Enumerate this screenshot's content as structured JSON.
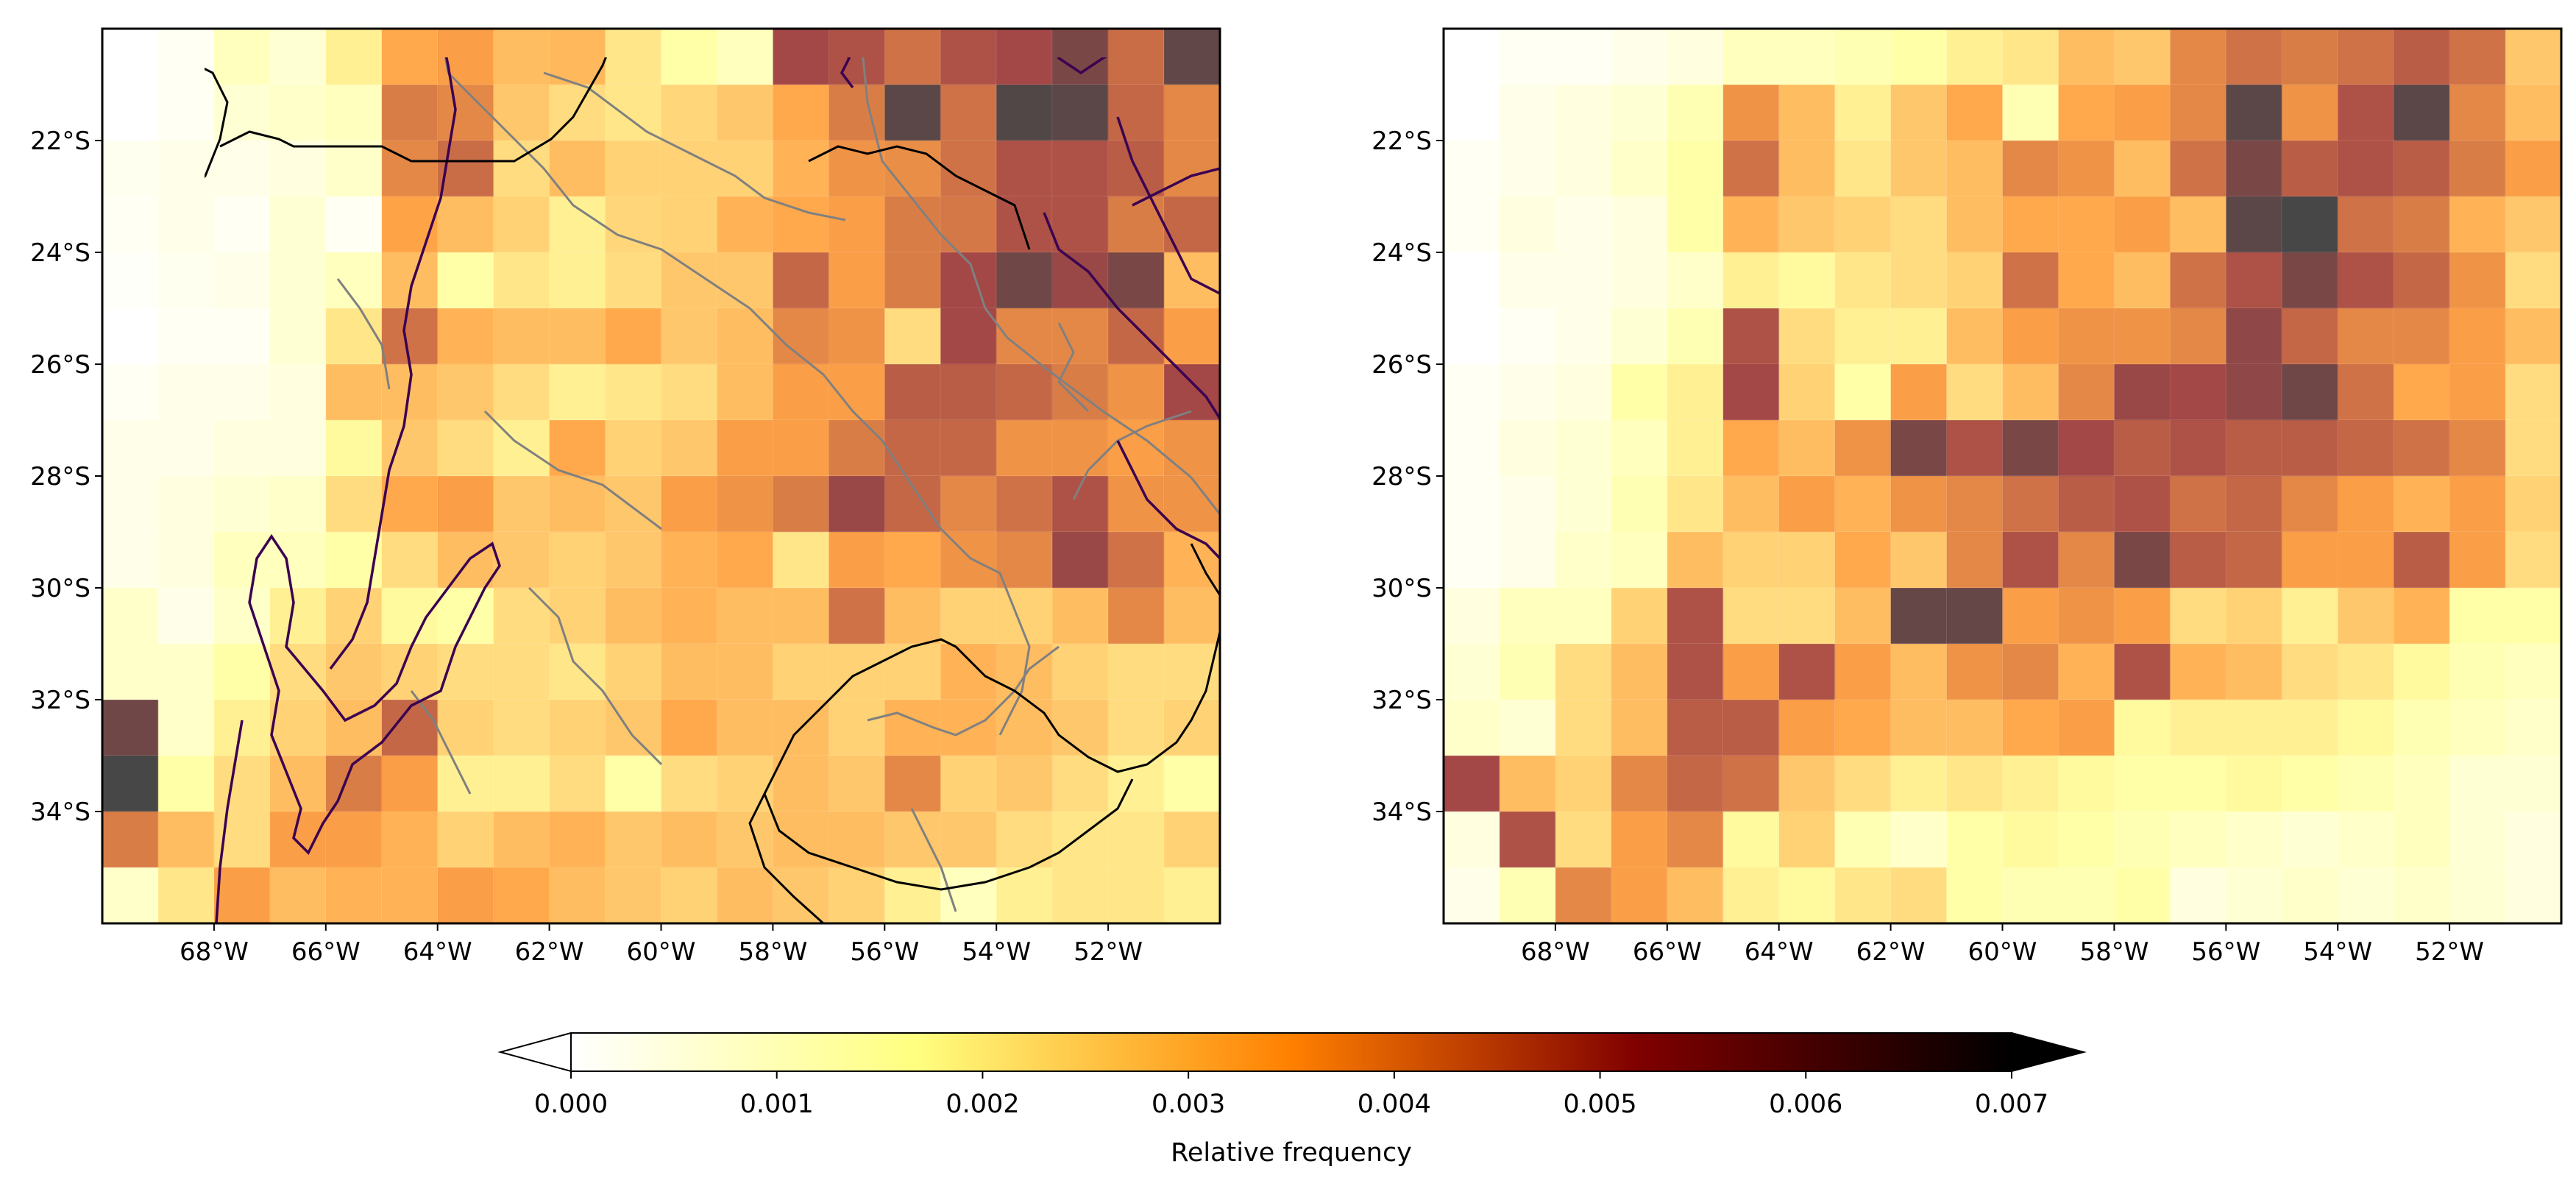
{
  "chart_data": {
    "type": "heatmap",
    "description_units": "degrees",
    "lon_range": [
      -70,
      -50
    ],
    "lat_range": [
      -36,
      -20
    ],
    "grid_resolution_deg": 1,
    "x_ticks": [
      -68,
      -66,
      -64,
      -62,
      -60,
      -58,
      -56,
      -54,
      -52
    ],
    "x_tick_labels": [
      "68°W",
      "66°W",
      "64°W",
      "62°W",
      "60°W",
      "58°W",
      "56°W",
      "54°W",
      "52°W"
    ],
    "y_ticks": [
      -22,
      -24,
      -26,
      -28,
      -30,
      -32,
      -34
    ],
    "y_tick_labels": [
      "22°S",
      "24°S",
      "26°S",
      "28°S",
      "30°S",
      "32°S",
      "34°S"
    ],
    "colorbar": {
      "label": "Relative frequency",
      "min": 0.0,
      "max": 0.007,
      "extend": "both",
      "colormap": "afmhot_r-like (white-yellow-orange-dark red-black)",
      "ticks": [
        0.0,
        0.001,
        0.002,
        0.003,
        0.004,
        0.005,
        0.006,
        0.007
      ],
      "tick_labels": [
        "0.000",
        "0.001",
        "0.002",
        "0.003",
        "0.004",
        "0.005",
        "0.006",
        "0.007"
      ],
      "stops": [
        {
          "v": 0.0,
          "color": "#ffffff"
        },
        {
          "v": 0.0017,
          "color": "#ffff80"
        },
        {
          "v": 0.0035,
          "color": "#ff8000"
        },
        {
          "v": 0.0052,
          "color": "#800000"
        },
        {
          "v": 0.007,
          "color": "#000000"
        }
      ]
    },
    "panels": [
      {
        "name": "left",
        "grid_rows_north_to_south": [
          [
            0.0,
            0.0002,
            0.0012,
            0.0008,
            0.002,
            0.0034,
            0.0036,
            0.003,
            0.0031,
            0.0022,
            0.0016,
            0.0012,
            0.0052,
            0.005,
            0.0044,
            0.005,
            0.0052,
            0.006,
            0.0045,
            0.0065
          ],
          [
            0.0,
            0.0002,
            0.0008,
            0.001,
            0.0012,
            0.0042,
            0.004,
            0.0028,
            0.0024,
            0.0022,
            0.0025,
            0.0028,
            0.0034,
            0.0042,
            0.0066,
            0.0044,
            0.0068,
            0.0066,
            0.0046,
            0.004
          ],
          [
            0.0003,
            0.0004,
            0.0004,
            0.0006,
            0.001,
            0.004,
            0.0045,
            0.0024,
            0.003,
            0.0026,
            0.0026,
            0.0026,
            0.0032,
            0.0038,
            0.0039,
            0.0044,
            0.005,
            0.005,
            0.0048,
            0.004
          ],
          [
            0.0002,
            0.0004,
            0.0002,
            0.0008,
            0.0002,
            0.0035,
            0.003,
            0.0026,
            0.002,
            0.0025,
            0.0026,
            0.0032,
            0.0034,
            0.0036,
            0.0042,
            0.0043,
            0.005,
            0.005,
            0.0042,
            0.0046
          ],
          [
            0.0001,
            0.0003,
            0.0004,
            0.0008,
            0.0012,
            0.003,
            0.0016,
            0.0022,
            0.002,
            0.0024,
            0.0028,
            0.0028,
            0.0046,
            0.0036,
            0.0042,
            0.0052,
            0.0062,
            0.0054,
            0.006,
            0.003
          ],
          [
            0.0,
            0.0002,
            0.0002,
            0.0008,
            0.0022,
            0.0044,
            0.0032,
            0.003,
            0.003,
            0.0034,
            0.0028,
            0.003,
            0.004,
            0.0038,
            0.0024,
            0.0052,
            0.004,
            0.004,
            0.0046,
            0.0036
          ],
          [
            0.0002,
            0.0004,
            0.0004,
            0.0006,
            0.003,
            0.003,
            0.0028,
            0.0024,
            0.002,
            0.0022,
            0.0024,
            0.003,
            0.0036,
            0.0036,
            0.0048,
            0.0048,
            0.0046,
            0.0042,
            0.0038,
            0.0052
          ],
          [
            0.0004,
            0.0004,
            0.0006,
            0.0006,
            0.0018,
            0.0028,
            0.0024,
            0.002,
            0.0034,
            0.0026,
            0.0028,
            0.0036,
            0.0036,
            0.0042,
            0.0046,
            0.0046,
            0.0038,
            0.0038,
            0.0036,
            0.0038
          ],
          [
            0.0004,
            0.0006,
            0.0008,
            0.001,
            0.0024,
            0.0034,
            0.0036,
            0.0028,
            0.003,
            0.0028,
            0.0036,
            0.0038,
            0.0042,
            0.0054,
            0.0046,
            0.004,
            0.0044,
            0.005,
            0.0038,
            0.0038
          ],
          [
            0.0004,
            0.0006,
            0.0012,
            0.0012,
            0.0016,
            0.0024,
            0.003,
            0.0028,
            0.0026,
            0.0028,
            0.0032,
            0.0034,
            0.0022,
            0.0036,
            0.0034,
            0.0038,
            0.004,
            0.0054,
            0.0044,
            0.0032
          ],
          [
            0.001,
            0.0004,
            0.001,
            0.002,
            0.0026,
            0.0018,
            0.0016,
            0.0024,
            0.0026,
            0.003,
            0.0032,
            0.003,
            0.003,
            0.0044,
            0.003,
            0.0026,
            0.0026,
            0.003,
            0.004,
            0.003
          ],
          [
            0.001,
            0.001,
            0.0016,
            0.0024,
            0.0028,
            0.0026,
            0.0024,
            0.0024,
            0.0022,
            0.0026,
            0.003,
            0.003,
            0.0026,
            0.0026,
            0.0026,
            0.0032,
            0.003,
            0.0026,
            0.0024,
            0.0024
          ],
          [
            0.0062,
            0.001,
            0.002,
            0.0026,
            0.003,
            0.0046,
            0.0026,
            0.0024,
            0.0026,
            0.0028,
            0.0034,
            0.003,
            0.003,
            0.0026,
            0.0032,
            0.0032,
            0.003,
            0.0028,
            0.0024,
            0.0026
          ],
          [
            0.0072,
            0.0016,
            0.0024,
            0.003,
            0.0042,
            0.0036,
            0.002,
            0.002,
            0.0024,
            0.0016,
            0.0024,
            0.0026,
            0.003,
            0.0028,
            0.004,
            0.0026,
            0.0028,
            0.0024,
            0.002,
            0.0016
          ],
          [
            0.0042,
            0.003,
            0.0024,
            0.0036,
            0.0036,
            0.0032,
            0.0026,
            0.003,
            0.0032,
            0.0028,
            0.003,
            0.0028,
            0.003,
            0.003,
            0.0028,
            0.0028,
            0.0024,
            0.0022,
            0.0022,
            0.0026
          ],
          [
            0.001,
            0.0022,
            0.0036,
            0.003,
            0.0032,
            0.0032,
            0.0036,
            0.0034,
            0.003,
            0.0028,
            0.0026,
            0.003,
            0.0028,
            0.0026,
            0.002,
            0.0012,
            0.002,
            0.0022,
            0.0022,
            0.002
          ]
        ]
      },
      {
        "name": "right",
        "grid_rows_north_to_south": [
          [
            0.0,
            0.0002,
            0.0002,
            0.0004,
            0.0006,
            0.0012,
            0.0012,
            0.0014,
            0.0016,
            0.002,
            0.0022,
            0.003,
            0.0028,
            0.004,
            0.0044,
            0.0042,
            0.0044,
            0.0048,
            0.0044,
            0.0028
          ],
          [
            0.0,
            0.0004,
            0.0006,
            0.0008,
            0.0014,
            0.0038,
            0.003,
            0.002,
            0.0028,
            0.0034,
            0.0014,
            0.0034,
            0.0036,
            0.004,
            0.0066,
            0.0038,
            0.005,
            0.0066,
            0.004,
            0.003
          ],
          [
            0.0002,
            0.0004,
            0.0006,
            0.001,
            0.0016,
            0.0044,
            0.003,
            0.0022,
            0.0028,
            0.003,
            0.004,
            0.0038,
            0.003,
            0.0044,
            0.006,
            0.0048,
            0.005,
            0.0048,
            0.0042,
            0.0036
          ],
          [
            0.0002,
            0.0006,
            0.0004,
            0.0006,
            0.0016,
            0.0032,
            0.0028,
            0.0026,
            0.0024,
            0.003,
            0.0034,
            0.0034,
            0.0036,
            0.003,
            0.0066,
            0.007,
            0.0044,
            0.0042,
            0.0032,
            0.0028
          ],
          [
            0.0,
            0.0004,
            0.0004,
            0.0006,
            0.001,
            0.002,
            0.0018,
            0.0022,
            0.0024,
            0.0026,
            0.0044,
            0.0034,
            0.003,
            0.0044,
            0.005,
            0.006,
            0.005,
            0.0046,
            0.0038,
            0.0024
          ],
          [
            0.0,
            0.0002,
            0.0004,
            0.0008,
            0.0014,
            0.005,
            0.0024,
            0.002,
            0.002,
            0.003,
            0.0036,
            0.0038,
            0.0038,
            0.004,
            0.0056,
            0.0046,
            0.004,
            0.004,
            0.0036,
            0.003
          ],
          [
            0.0002,
            0.0004,
            0.0006,
            0.0016,
            0.002,
            0.0052,
            0.0026,
            0.0016,
            0.0036,
            0.0024,
            0.003,
            0.004,
            0.0054,
            0.0052,
            0.0056,
            0.0062,
            0.0044,
            0.0034,
            0.0036,
            0.0024
          ],
          [
            0.0002,
            0.0006,
            0.0008,
            0.0012,
            0.002,
            0.0034,
            0.003,
            0.0038,
            0.006,
            0.005,
            0.006,
            0.0052,
            0.0048,
            0.005,
            0.0048,
            0.0048,
            0.0046,
            0.0044,
            0.004,
            0.0024
          ],
          [
            0.0002,
            0.0004,
            0.0008,
            0.0014,
            0.0022,
            0.003,
            0.0036,
            0.0032,
            0.0038,
            0.004,
            0.0044,
            0.0048,
            0.005,
            0.0044,
            0.0046,
            0.004,
            0.0036,
            0.0032,
            0.0036,
            0.0026
          ],
          [
            0.0002,
            0.0004,
            0.001,
            0.0012,
            0.003,
            0.0026,
            0.0026,
            0.0034,
            0.0028,
            0.004,
            0.005,
            0.004,
            0.006,
            0.0048,
            0.0046,
            0.0036,
            0.0036,
            0.0048,
            0.0036,
            0.0024
          ],
          [
            0.0006,
            0.0012,
            0.0012,
            0.0026,
            0.005,
            0.0024,
            0.0024,
            0.003,
            0.0064,
            0.0064,
            0.0036,
            0.0038,
            0.0036,
            0.0024,
            0.0026,
            0.002,
            0.0028,
            0.0032,
            0.0016,
            0.0016
          ],
          [
            0.0008,
            0.0014,
            0.0024,
            0.003,
            0.005,
            0.0036,
            0.005,
            0.0036,
            0.003,
            0.0038,
            0.004,
            0.0032,
            0.005,
            0.0032,
            0.003,
            0.0024,
            0.0022,
            0.0018,
            0.0014,
            0.0012
          ],
          [
            0.001,
            0.0008,
            0.0024,
            0.003,
            0.0048,
            0.0048,
            0.0036,
            0.0034,
            0.003,
            0.003,
            0.0034,
            0.0036,
            0.0018,
            0.002,
            0.002,
            0.002,
            0.0018,
            0.0014,
            0.0012,
            0.001
          ],
          [
            0.0052,
            0.003,
            0.0026,
            0.004,
            0.0046,
            0.0044,
            0.0028,
            0.0024,
            0.002,
            0.0022,
            0.002,
            0.0018,
            0.0016,
            0.0016,
            0.0018,
            0.0016,
            0.0014,
            0.0012,
            0.0008,
            0.0008
          ],
          [
            0.0006,
            0.005,
            0.0024,
            0.0036,
            0.004,
            0.0018,
            0.0026,
            0.0014,
            0.001,
            0.0016,
            0.0018,
            0.0016,
            0.0014,
            0.0012,
            0.001,
            0.0008,
            0.001,
            0.0012,
            0.0008,
            0.0006
          ],
          [
            0.0004,
            0.0014,
            0.004,
            0.0036,
            0.003,
            0.002,
            0.0018,
            0.0022,
            0.0024,
            0.0016,
            0.0014,
            0.0014,
            0.0016,
            0.0006,
            0.0008,
            0.001,
            0.0008,
            0.001,
            0.0008,
            0.0006
          ]
        ]
      }
    ]
  }
}
